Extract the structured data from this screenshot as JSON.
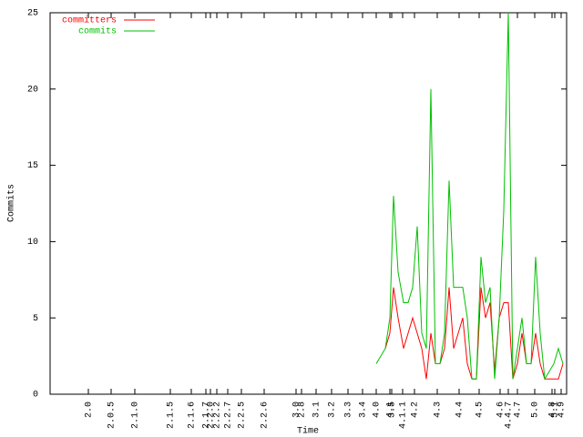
{
  "chart_data": {
    "type": "line",
    "ylabel": "Commits",
    "xlabel": "Time",
    "ylim": [
      0,
      25
    ],
    "yticks": [
      0,
      5,
      10,
      15,
      20,
      25
    ],
    "xlim": [
      0,
      567
    ],
    "xticks": [
      {
        "value": 42,
        "label": "2.0"
      },
      {
        "value": 67,
        "label": "2.0.5"
      },
      {
        "value": 93,
        "label": "2.1.0"
      },
      {
        "value": 132,
        "label": "2.1.5"
      },
      {
        "value": 155,
        "label": "2.1.6"
      },
      {
        "value": 171,
        "label": "2.1.7"
      },
      {
        "value": 176,
        "label": "2.2.0"
      },
      {
        "value": 183,
        "label": "2.2.2"
      },
      {
        "value": 195,
        "label": "2.2.7"
      },
      {
        "value": 210,
        "label": "2.2.5"
      },
      {
        "value": 235,
        "label": "2.2.6"
      },
      {
        "value": 270,
        "label": "3.0"
      },
      {
        "value": 276,
        "label": "2.8"
      },
      {
        "value": 292,
        "label": "3.1"
      },
      {
        "value": 309,
        "label": "3.2"
      },
      {
        "value": 327,
        "label": "3.3"
      },
      {
        "value": 343,
        "label": "3.4"
      },
      {
        "value": 358,
        "label": "4.0"
      },
      {
        "value": 373,
        "label": "4.1"
      },
      {
        "value": 375,
        "label": "3.5"
      },
      {
        "value": 387,
        "label": "4.1.1"
      },
      {
        "value": 400,
        "label": "4.2"
      },
      {
        "value": 425,
        "label": "4.3"
      },
      {
        "value": 449,
        "label": "4.4"
      },
      {
        "value": 471,
        "label": "4.5"
      },
      {
        "value": 494,
        "label": "4.6"
      },
      {
        "value": 503,
        "label": "4.4.7"
      },
      {
        "value": 513,
        "label": "4.7"
      },
      {
        "value": 532,
        "label": "5.0"
      },
      {
        "value": 551,
        "label": "4.8"
      },
      {
        "value": 554,
        "label": "5.1"
      },
      {
        "value": 561,
        "label": "4.9"
      }
    ],
    "x": [
      358,
      368,
      373,
      377,
      382,
      388,
      393,
      398,
      403,
      408,
      413,
      418,
      423,
      428,
      433,
      438,
      443,
      448,
      453,
      458,
      463,
      468,
      473,
      478,
      483,
      488,
      493,
      498,
      503,
      508,
      513,
      518,
      523,
      528,
      533,
      538,
      543,
      548,
      553,
      558,
      563
    ],
    "series": [
      {
        "name": "committers",
        "color": "#ff0000",
        "values": [
          null,
          3,
          4,
          7,
          5,
          3,
          4,
          5,
          4,
          3,
          1,
          4,
          2,
          2,
          3,
          7,
          3,
          4,
          5,
          2,
          1,
          1,
          7,
          5,
          6,
          1.5,
          5,
          6,
          6,
          1,
          2,
          4,
          2,
          2,
          4,
          2,
          1,
          1,
          1,
          1,
          2
        ]
      },
      {
        "name": "commits",
        "color": "#00c000",
        "values": [
          2,
          3,
          5,
          13,
          8,
          6,
          6,
          7,
          11,
          4,
          3,
          20,
          2,
          2,
          4,
          14,
          7,
          7,
          7,
          5,
          1,
          1,
          9,
          6,
          7,
          1,
          5,
          12,
          25,
          1,
          3,
          5,
          2,
          2,
          9,
          4,
          1,
          1.5,
          2,
          3,
          2
        ]
      }
    ]
  }
}
